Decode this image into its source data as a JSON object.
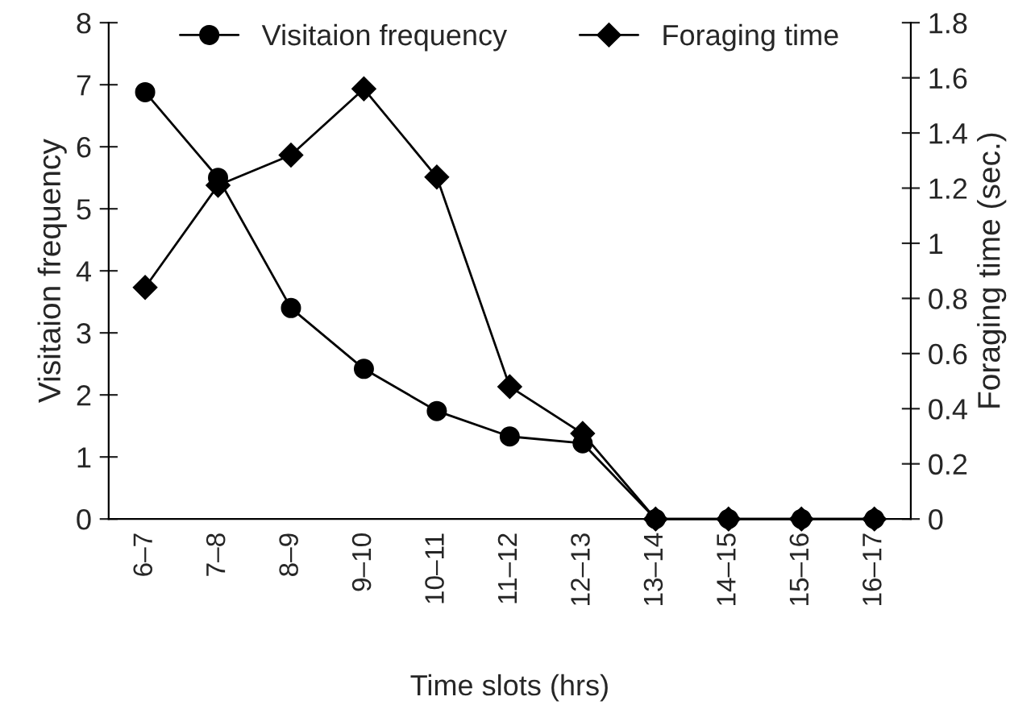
{
  "chart_data": {
    "type": "line",
    "xlabel": "Time slots (hrs)",
    "ylabel": "Visitaion frequency",
    "y2label": "Foraging time (sec.)",
    "categories": [
      "6–7",
      "7–8",
      "8–9",
      "9–10",
      "10–11",
      "11–12",
      "12–13",
      "13–14",
      "14–15",
      "15–16",
      "16–17"
    ],
    "series": [
      {
        "name": "Visitaion frequency",
        "color": "#000000",
        "marker": "circle",
        "values": [
          6.88,
          5.5,
          3.4,
          2.42,
          1.74,
          1.33,
          1.22,
          0,
          0,
          0,
          0
        ]
      },
      {
        "name": "Foraging time",
        "color": "#000000",
        "marker": "diamond",
        "axis": "y2",
        "values": [
          0.84,
          1.21,
          1.32,
          1.56,
          1.24,
          0.48,
          0.31,
          0,
          0,
          0,
          0
        ]
      }
    ],
    "ylim": [
      0,
      8
    ],
    "yticks": [
      0,
      1,
      2,
      3,
      4,
      5,
      6,
      7,
      8
    ],
    "y2lim": [
      0,
      1.8
    ],
    "y2ticks": [
      0,
      0.2,
      0.4,
      0.6,
      0.8,
      1,
      1.2,
      1.4,
      1.6,
      1.8
    ],
    "grid": false,
    "legend": "top"
  }
}
